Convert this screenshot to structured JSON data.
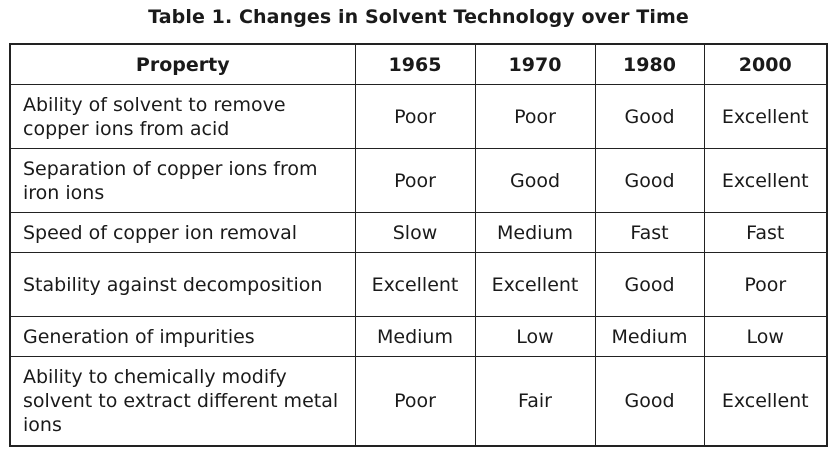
{
  "title": "Table 1. Changes in Solvent Technology over Time",
  "table": {
    "headers": [
      "Property",
      "1965",
      "1970",
      "1980",
      "2000"
    ],
    "rows": [
      {
        "property": "Ability of solvent to remove copper ions from acid",
        "values": [
          "Poor",
          "Poor",
          "Good",
          "Excellent"
        ]
      },
      {
        "property": "Separation of copper ions from iron ions",
        "values": [
          "Poor",
          "Good",
          "Good",
          "Excellent"
        ]
      },
      {
        "property": "Speed of copper ion removal",
        "values": [
          "Slow",
          "Medium",
          "Fast",
          "Fast"
        ]
      },
      {
        "property": "Stability against decomposition",
        "values": [
          "Excellent",
          "Excellent",
          "Good",
          "Poor"
        ]
      },
      {
        "property": "Generation of impurities",
        "values": [
          "Medium",
          "Low",
          "Medium",
          "Low"
        ]
      },
      {
        "property": "Ability to chemically modify solvent to extract different metal ions",
        "values": [
          "Poor",
          "Fair",
          "Good",
          "Excellent"
        ]
      }
    ]
  }
}
